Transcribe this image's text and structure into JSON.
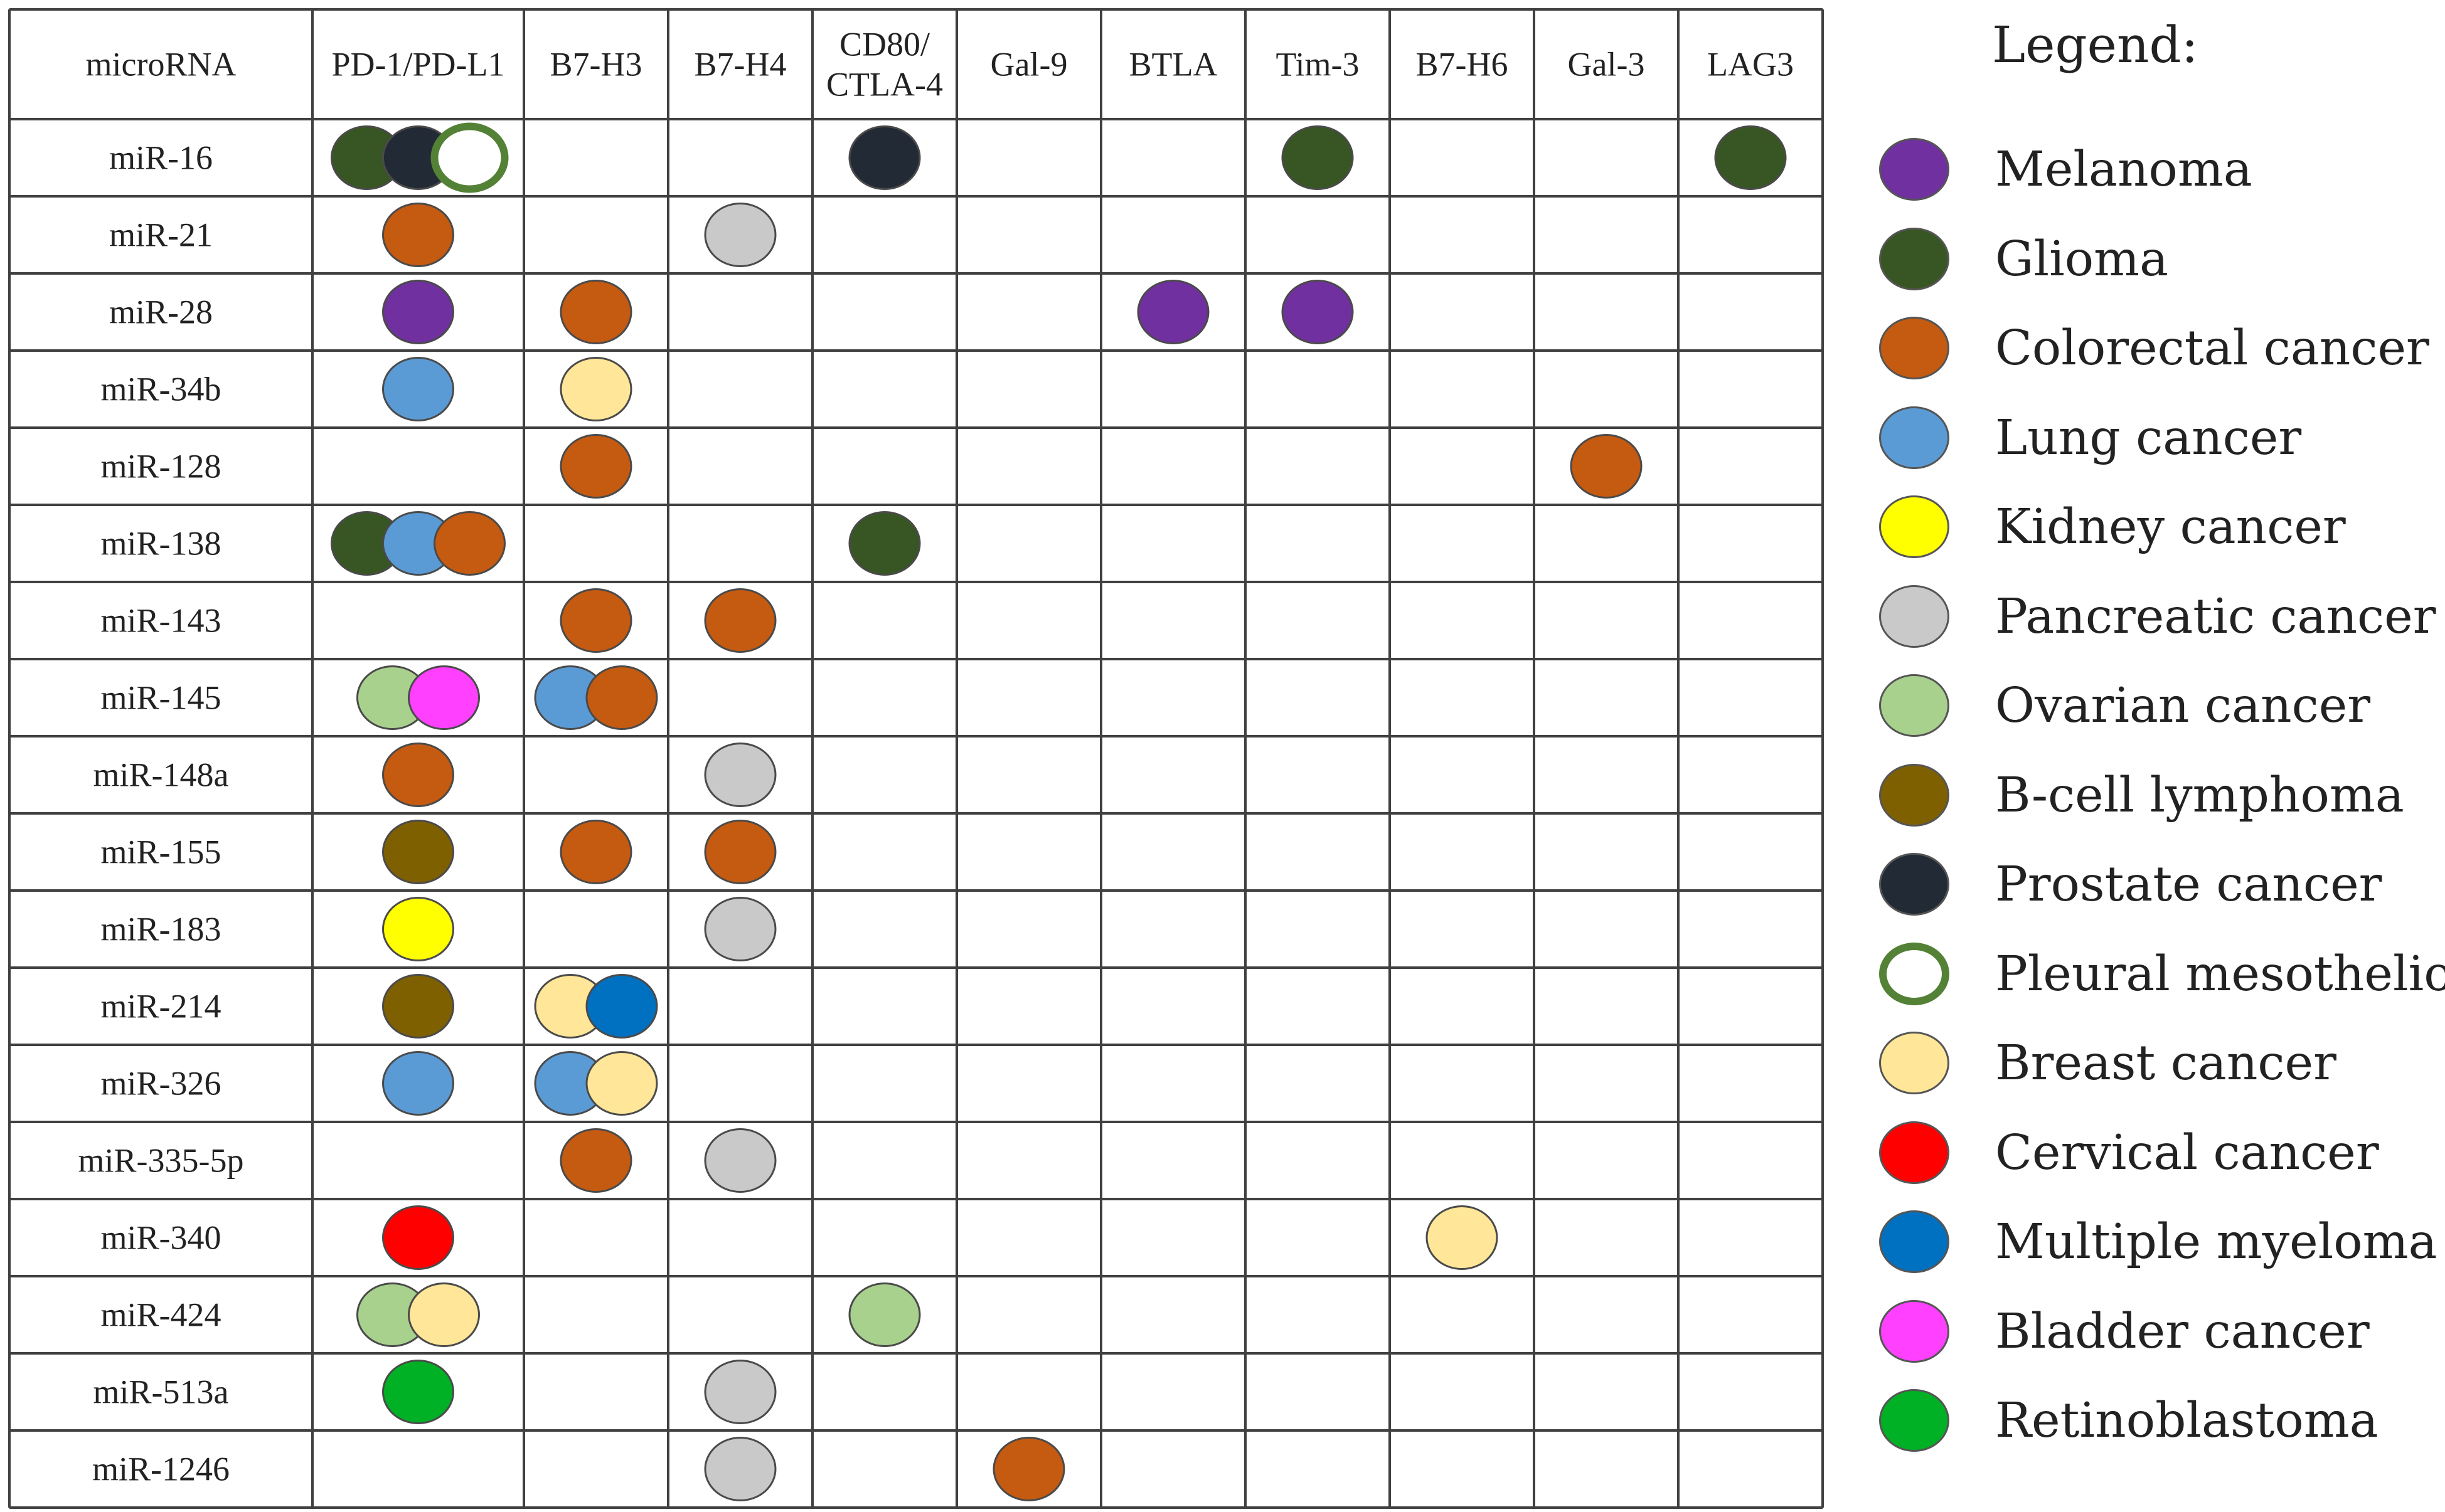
{
  "table": {
    "header_first": "microRNA",
    "columns": [
      "PD-1/PD-L1",
      "B7-H3",
      "B7-H4",
      "CD80/\nCTLA-4",
      "Gal-9",
      "BTLA",
      "Tim-3",
      "B7-H6",
      "Gal-3",
      "LAG3"
    ],
    "rows": [
      {
        "label": "miR-16",
        "cells": {
          "0": [
            "glioma",
            "prostate",
            "pleural"
          ],
          "3": [
            "prostate"
          ],
          "6": [
            "glioma"
          ],
          "9": [
            "glioma"
          ]
        }
      },
      {
        "label": "miR-21",
        "cells": {
          "0": [
            "colorectal"
          ],
          "2": [
            "pancreatic"
          ]
        }
      },
      {
        "label": "miR-28",
        "cells": {
          "0": [
            "melanoma"
          ],
          "1": [
            "colorectal"
          ],
          "5": [
            "melanoma"
          ],
          "6": [
            "melanoma"
          ]
        }
      },
      {
        "label": "miR-34b",
        "cells": {
          "0": [
            "lung"
          ],
          "1": [
            "breast"
          ]
        }
      },
      {
        "label": "miR-128",
        "cells": {
          "1": [
            "colorectal"
          ],
          "8": [
            "colorectal"
          ]
        }
      },
      {
        "label": "miR-138",
        "cells": {
          "0": [
            "glioma",
            "lung",
            "colorectal"
          ],
          "3": [
            "glioma"
          ]
        }
      },
      {
        "label": "miR-143",
        "cells": {
          "1": [
            "colorectal"
          ],
          "2": [
            "colorectal"
          ]
        }
      },
      {
        "label": "miR-145",
        "cells": {
          "0": [
            "ovarian",
            "bladder"
          ],
          "1": [
            "lung",
            "colorectal"
          ]
        }
      },
      {
        "label": "miR-148a",
        "cells": {
          "0": [
            "colorectal"
          ],
          "2": [
            "pancreatic"
          ]
        }
      },
      {
        "label": "miR-155",
        "cells": {
          "0": [
            "bcell"
          ],
          "1": [
            "colorectal"
          ],
          "2": [
            "colorectal"
          ]
        }
      },
      {
        "label": "miR-183",
        "cells": {
          "0": [
            "kidney"
          ],
          "2": [
            "pancreatic"
          ]
        }
      },
      {
        "label": "miR-214",
        "cells": {
          "0": [
            "bcell"
          ],
          "1": [
            "breast",
            "myeloma"
          ]
        }
      },
      {
        "label": "miR-326",
        "cells": {
          "0": [
            "lung"
          ],
          "1": [
            "lung",
            "breast"
          ]
        }
      },
      {
        "label": "miR-335-5p",
        "cells": {
          "1": [
            "colorectal"
          ],
          "2": [
            "pancreatic"
          ]
        }
      },
      {
        "label": "miR-340",
        "cells": {
          "0": [
            "cervical"
          ],
          "7": [
            "breast"
          ]
        }
      },
      {
        "label": "miR-424",
        "cells": {
          "0": [
            "ovarian",
            "breast"
          ],
          "3": [
            "ovarian"
          ]
        }
      },
      {
        "label": "miR-513a",
        "cells": {
          "0": [
            "retinoblastoma"
          ],
          "2": [
            "pancreatic"
          ]
        }
      },
      {
        "label": "miR-1246",
        "cells": {
          "2": [
            "pancreatic"
          ],
          "4": [
            "colorectal"
          ]
        }
      }
    ]
  },
  "legend": {
    "title": "Legend:",
    "items": [
      {
        "key": "melanoma",
        "label": "Melanoma",
        "color": "#7030a0"
      },
      {
        "key": "glioma",
        "label": "Glioma",
        "color": "#375623"
      },
      {
        "key": "colorectal",
        "label": "Colorectal cancer",
        "color": "#c55a11"
      },
      {
        "key": "lung",
        "label": "Lung cancer",
        "color": "#5b9bd5"
      },
      {
        "key": "kidney",
        "label": "Kidney cancer",
        "color": "#ffff00"
      },
      {
        "key": "pancreatic",
        "label": "Pancreatic cancer",
        "color": "#c9c9c9"
      },
      {
        "key": "ovarian",
        "label": "Ovarian cancer",
        "color": "#a9d18e"
      },
      {
        "key": "bcell",
        "label": "B-cell lymphoma",
        "color": "#7f6000"
      },
      {
        "key": "prostate",
        "label": "Prostate cancer",
        "color": "#222a35"
      },
      {
        "key": "pleural",
        "label": "Pleural mesothelioma",
        "color": "#ffffff",
        "outline": "#538135"
      },
      {
        "key": "breast",
        "label": "Breast cancer",
        "color": "#ffe699"
      },
      {
        "key": "cervical",
        "label": "Cervical cancer",
        "color": "#ff0000"
      },
      {
        "key": "myeloma",
        "label": "Multiple myeloma",
        "color": "#0070c0"
      },
      {
        "key": "bladder",
        "label": "Bladder cancer",
        "color": "#ff40ff"
      },
      {
        "key": "retinoblastoma",
        "label": "Retinoblastoma",
        "color": "#00b025"
      }
    ]
  }
}
